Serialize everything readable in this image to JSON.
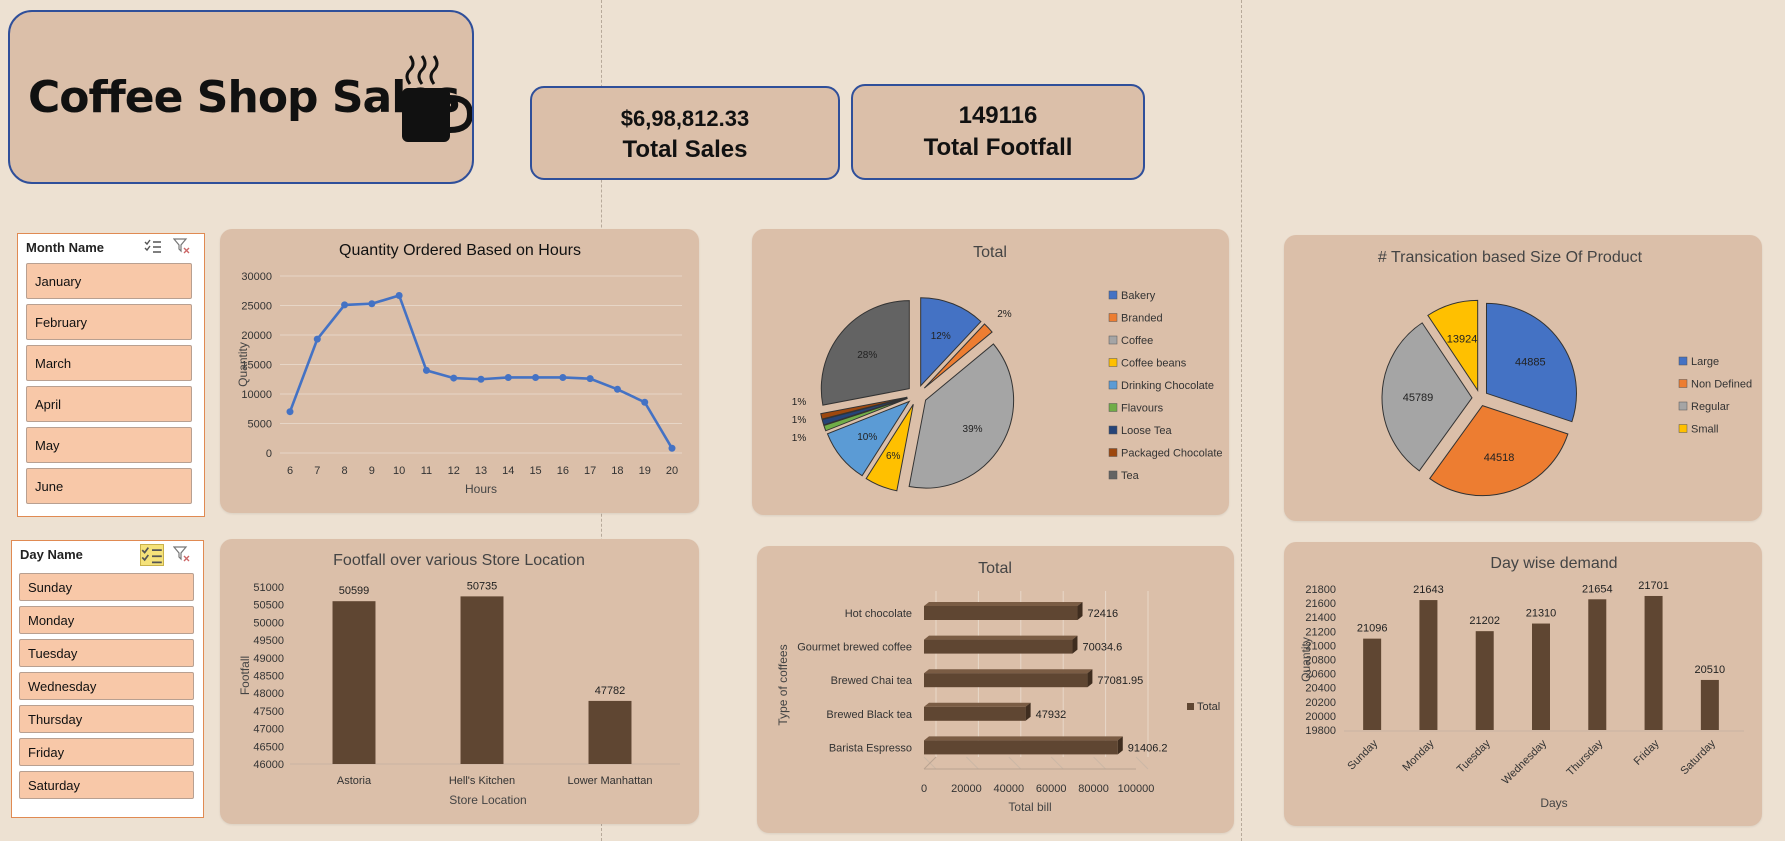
{
  "dashboard": {
    "title": "Coffee Shop Sales",
    "icon": "coffee-mug-icon",
    "kpis": [
      {
        "value": "$6,98,812.33",
        "label": "Total Sales"
      },
      {
        "value": "149116",
        "label": "Total Footfall"
      }
    ]
  },
  "slicers": {
    "month": {
      "header": "Month Name",
      "items": [
        "January",
        "February",
        "March",
        "April",
        "May",
        "June"
      ]
    },
    "day": {
      "header": "Day Name",
      "items": [
        "Sunday",
        "Monday",
        "Tuesday",
        "Wednesday",
        "Thursday",
        "Friday",
        "Saturday"
      ]
    }
  },
  "colors": {
    "background": "#ede1d2",
    "tile": "#dbbfa9",
    "kpi_border": "#2f4f9a",
    "line": "#4472c4",
    "bar": "#5f4632",
    "slicer_item": "#f8c8a8"
  },
  "chart_data": [
    {
      "type": "line",
      "title": "Quantity Ordered Based on Hours",
      "xlabel": "Hours",
      "ylabel": "Quantity",
      "x": [
        6,
        7,
        8,
        9,
        10,
        11,
        12,
        13,
        14,
        15,
        16,
        17,
        18,
        19,
        20
      ],
      "values": [
        7000,
        19300,
        25100,
        25300,
        26700,
        14000,
        12700,
        12500,
        12800,
        12800,
        12800,
        12600,
        10800,
        8600,
        800
      ],
      "ylim": [
        0,
        30000
      ],
      "yticks": [
        0,
        5000,
        10000,
        15000,
        20000,
        25000,
        30000
      ],
      "grid": true
    },
    {
      "type": "pie",
      "title": "Total",
      "legend": "right",
      "labels": [
        "Bakery",
        "Branded",
        "Coffee",
        "Coffee beans",
        "Drinking Chocolate",
        "Flavours",
        "Loose Tea",
        "Packaged Chocolate",
        "Tea"
      ],
      "values": [
        12,
        2,
        39,
        6,
        10,
        1,
        1,
        1,
        28
      ],
      "data_labels": [
        "12%",
        "2%",
        "39%",
        "6%",
        "10%",
        "1%",
        "1%",
        "1%",
        "28%"
      ],
      "colors": [
        "#4472c4",
        "#ed7d31",
        "#a5a5a5",
        "#ffc000",
        "#5b9bd5",
        "#70ad47",
        "#264478",
        "#9e480e",
        "#636363"
      ]
    },
    {
      "type": "pie",
      "title": "# Transication based Size Of Product",
      "legend": "right",
      "labels": [
        "Large",
        "Non Defined",
        "Regular",
        "Small"
      ],
      "values": [
        44885,
        44518,
        45789,
        13924
      ],
      "colors": [
        "#4472c4",
        "#ed7d31",
        "#a5a5a5",
        "#ffc000"
      ]
    },
    {
      "type": "bar",
      "title": "Footfall over various Store Location",
      "xlabel": "Store Location",
      "ylabel": "Footfall",
      "categories": [
        "Astoria",
        "Hell's Kitchen",
        "Lower Manhattan"
      ],
      "values": [
        50599,
        50735,
        47782
      ],
      "ylim": [
        46000,
        51000
      ],
      "yticks": [
        46000,
        46500,
        47000,
        47500,
        48000,
        48500,
        49000,
        49500,
        50000,
        50500,
        51000
      ]
    },
    {
      "type": "bar",
      "orientation": "horizontal",
      "title": "Total",
      "xlabel": "Total bill",
      "ylabel": "Type of coffees",
      "categories": [
        "Hot chocolate",
        "Gourmet brewed coffee",
        "Brewed Chai tea",
        "Brewed Black tea",
        "Barista Espresso"
      ],
      "values": [
        72416,
        70034.6,
        77081.95,
        47932,
        91406.2
      ],
      "data_labels": [
        "72416",
        "70034.6",
        "77081.95",
        "47932",
        "91406.2"
      ],
      "xlim": [
        0,
        100000
      ],
      "xticks": [
        0,
        20000,
        40000,
        60000,
        80000,
        100000
      ],
      "series": [
        {
          "name": "Total"
        }
      ],
      "legend": "right"
    },
    {
      "type": "bar",
      "title": "Day wise demand",
      "xlabel": "Days",
      "ylabel": "Quantity",
      "categories": [
        "Sunday",
        "Monday",
        "Tuesday",
        "Wednesday",
        "Thursday",
        "Friday",
        "Saturday"
      ],
      "values": [
        21096,
        21643,
        21202,
        21310,
        21654,
        21701,
        20510
      ],
      "ylim": [
        19800,
        21800
      ],
      "yticks": [
        19800,
        20000,
        20200,
        20400,
        20600,
        20800,
        21000,
        21200,
        21400,
        21600,
        21800
      ]
    }
  ]
}
